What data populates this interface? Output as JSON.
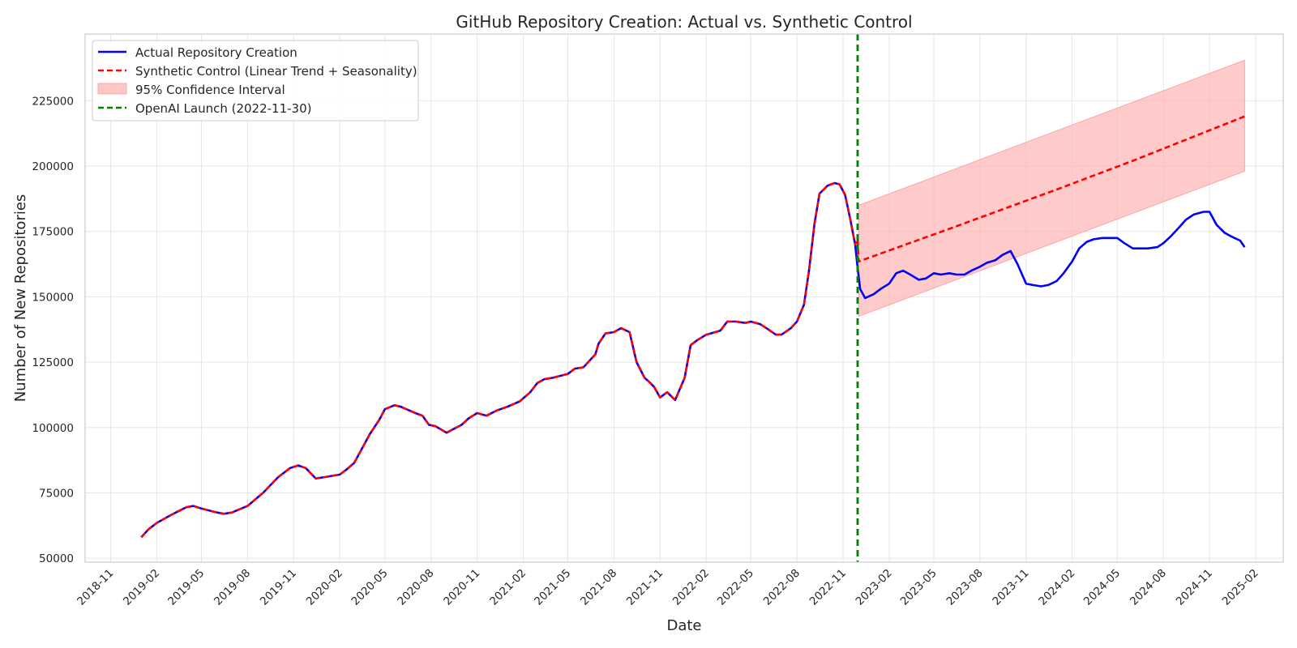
{
  "chart_data": {
    "type": "line",
    "title": "GitHub Repository Creation: Actual vs. Synthetic Control",
    "xlabel": "Date",
    "ylabel": "Number of New Repositories",
    "xlim": [
      "2018-09-11",
      "2025-03-28"
    ],
    "ylim": [
      48500,
      250500
    ],
    "x_ticks": [
      "2018-11",
      "2019-02",
      "2019-05",
      "2019-08",
      "2019-11",
      "2020-02",
      "2020-05",
      "2020-08",
      "2020-11",
      "2021-02",
      "2021-05",
      "2021-08",
      "2021-11",
      "2022-02",
      "2022-05",
      "2022-08",
      "2022-11",
      "2023-02",
      "2023-05",
      "2023-08",
      "2023-11",
      "2024-02",
      "2024-05",
      "2024-08",
      "2024-11",
      "2025-02"
    ],
    "y_ticks": [
      50000,
      75000,
      100000,
      125000,
      150000,
      175000,
      200000,
      225000
    ],
    "grid": true,
    "legend_position": "top-left",
    "legend": {
      "actual": "Actual Repository Creation",
      "synthetic": "Synthetic Control (Linear Trend + Seasonality)",
      "ci": "95% Confidence Interval",
      "launch": "OpenAI Launch (2022-11-30)"
    },
    "event": {
      "date": "2022-11-30",
      "color": "#008000"
    },
    "colors": {
      "actual": "#0000ff",
      "synthetic": "#ff0000",
      "ci": "#ffb3b3",
      "grid": "#e6e6e6"
    },
    "series": [
      {
        "name": "Actual Repository Creation",
        "x": [
          "2019-01-01",
          "2019-01-15",
          "2019-02-01",
          "2019-03-01",
          "2019-04-01",
          "2019-04-15",
          "2019-05-01",
          "2019-06-01",
          "2019-06-15",
          "2019-07-01",
          "2019-08-01",
          "2019-09-01",
          "2019-10-01",
          "2019-10-25",
          "2019-11-10",
          "2019-11-25",
          "2019-12-15",
          "2020-01-01",
          "2020-02-01",
          "2020-02-15",
          "2020-03-01",
          "2020-04-01",
          "2020-04-20",
          "2020-05-01",
          "2020-05-20",
          "2020-06-01",
          "2020-07-01",
          "2020-07-15",
          "2020-07-28",
          "2020-08-10",
          "2020-09-01",
          "2020-10-01",
          "2020-10-15",
          "2020-11-01",
          "2020-11-20",
          "2020-12-10",
          "2021-01-01",
          "2021-01-25",
          "2021-02-15",
          "2021-03-01",
          "2021-03-15",
          "2021-04-01",
          "2021-05-01",
          "2021-05-15",
          "2021-06-01",
          "2021-06-25",
          "2021-07-01",
          "2021-07-15",
          "2021-08-01",
          "2021-08-15",
          "2021-09-01",
          "2021-09-15",
          "2021-10-01",
          "2021-10-10",
          "2021-10-20",
          "2021-11-01",
          "2021-11-15",
          "2021-12-01",
          "2021-12-20",
          "2022-01-01",
          "2022-01-15",
          "2022-02-01",
          "2022-03-01",
          "2022-03-15",
          "2022-04-01",
          "2022-04-20",
          "2022-05-01",
          "2022-05-20",
          "2022-06-01",
          "2022-06-20",
          "2022-07-01",
          "2022-07-20",
          "2022-08-01",
          "2022-08-15",
          "2022-08-25",
          "2022-09-05",
          "2022-09-15",
          "2022-10-01",
          "2022-10-15",
          "2022-10-25",
          "2022-11-05",
          "2022-11-15",
          "2022-11-25",
          "2022-11-30",
          "2022-12-05",
          "2022-12-15",
          "2023-01-01",
          "2023-01-15",
          "2023-02-01",
          "2023-02-15",
          "2023-03-01",
          "2023-03-15",
          "2023-04-01",
          "2023-04-15",
          "2023-05-01",
          "2023-05-15",
          "2023-06-01",
          "2023-06-15",
          "2023-07-01",
          "2023-07-15",
          "2023-08-01",
          "2023-08-15",
          "2023-09-01",
          "2023-09-15",
          "2023-10-01",
          "2023-10-15",
          "2023-11-01",
          "2023-11-15",
          "2023-12-01",
          "2023-12-15",
          "2024-01-01",
          "2024-01-15",
          "2024-02-01",
          "2024-02-15",
          "2024-03-01",
          "2024-03-15",
          "2024-04-01",
          "2024-05-01",
          "2024-05-15",
          "2024-06-01",
          "2024-07-01",
          "2024-07-20",
          "2024-08-01",
          "2024-08-15",
          "2024-09-01",
          "2024-09-15",
          "2024-10-01",
          "2024-10-20",
          "2024-11-01",
          "2024-11-15",
          "2024-12-01",
          "2024-12-15",
          "2025-01-01",
          "2025-01-10"
        ],
        "y": [
          58000,
          61000,
          63500,
          66500,
          69500,
          70000,
          69000,
          67500,
          67000,
          67500,
          70000,
          75000,
          81000,
          84500,
          85500,
          84500,
          80500,
          81000,
          82000,
          84000,
          86500,
          97500,
          103000,
          107000,
          108500,
          108000,
          105500,
          104500,
          101000,
          100500,
          98000,
          101000,
          103500,
          105500,
          104500,
          106500,
          108000,
          110000,
          113500,
          117000,
          118500,
          119000,
          120500,
          122500,
          123000,
          128000,
          132000,
          136000,
          136500,
          138000,
          136500,
          125000,
          119000,
          117500,
          115500,
          111500,
          113500,
          110500,
          119000,
          131500,
          133500,
          135500,
          137000,
          140500,
          140500,
          140000,
          140500,
          139500,
          138000,
          135500,
          135500,
          138000,
          140500,
          147000,
          160000,
          178000,
          189500,
          192500,
          193500,
          193000,
          189000,
          180000,
          170000,
          161000,
          153000,
          149500,
          151000,
          153000,
          155000,
          159000,
          160000,
          158500,
          156500,
          157000,
          159000,
          158500,
          159000,
          158500,
          158500,
          160000,
          161500,
          163000,
          164000,
          166000,
          167500,
          162500,
          155000,
          154500,
          154000,
          154500,
          156000,
          159000,
          163500,
          168500,
          171000,
          172000,
          172500,
          172500,
          170500,
          168500,
          168500,
          169000,
          170500,
          173000,
          176500,
          179500,
          181500,
          182500,
          182500,
          177500,
          174500,
          173000,
          171500,
          169000
        ]
      },
      {
        "name": "Synthetic Control (Linear Trend + Seasonality)",
        "x": [
          "2019-01-01",
          "2019-01-15",
          "2019-02-01",
          "2019-03-01",
          "2019-04-01",
          "2019-04-15",
          "2019-05-01",
          "2019-06-01",
          "2019-06-15",
          "2019-07-01",
          "2019-08-01",
          "2019-09-01",
          "2019-10-01",
          "2019-10-25",
          "2019-11-10",
          "2019-11-25",
          "2019-12-15",
          "2020-01-01",
          "2020-02-01",
          "2020-02-15",
          "2020-03-01",
          "2020-04-01",
          "2020-04-20",
          "2020-05-01",
          "2020-05-20",
          "2020-06-01",
          "2020-07-01",
          "2020-07-15",
          "2020-07-28",
          "2020-08-10",
          "2020-09-01",
          "2020-10-01",
          "2020-10-15",
          "2020-11-01",
          "2020-11-20",
          "2020-12-10",
          "2021-01-01",
          "2021-01-25",
          "2021-02-15",
          "2021-03-01",
          "2021-03-15",
          "2021-04-01",
          "2021-05-01",
          "2021-05-15",
          "2021-06-01",
          "2021-06-25",
          "2021-07-01",
          "2021-07-15",
          "2021-08-01",
          "2021-08-15",
          "2021-09-01",
          "2021-09-15",
          "2021-10-01",
          "2021-10-10",
          "2021-10-20",
          "2021-11-01",
          "2021-11-15",
          "2021-12-01",
          "2021-12-20",
          "2022-01-01",
          "2022-01-15",
          "2022-02-01",
          "2022-03-01",
          "2022-03-15",
          "2022-04-01",
          "2022-04-20",
          "2022-05-01",
          "2022-05-20",
          "2022-06-01",
          "2022-06-20",
          "2022-07-01",
          "2022-07-20",
          "2022-08-01",
          "2022-08-15",
          "2022-08-25",
          "2022-09-05",
          "2022-09-15",
          "2022-10-01",
          "2022-10-15",
          "2022-10-25",
          "2022-11-05",
          "2022-11-15",
          "2022-11-25",
          "2022-11-30",
          "2022-12-02",
          "2023-06-01",
          "2024-01-01",
          "2024-06-01",
          "2025-01-10"
        ],
        "y": [
          58000,
          61000,
          63500,
          66500,
          69500,
          70000,
          69000,
          67500,
          67000,
          67500,
          70000,
          75000,
          81000,
          84500,
          85500,
          84500,
          80500,
          81000,
          82000,
          84000,
          86500,
          97500,
          103000,
          107000,
          108500,
          108000,
          105500,
          104500,
          101000,
          100500,
          98000,
          101000,
          103500,
          105500,
          104500,
          106500,
          108000,
          110000,
          113500,
          117000,
          118500,
          119000,
          120500,
          122500,
          123000,
          128000,
          132000,
          136000,
          136500,
          138000,
          136500,
          125000,
          119000,
          117500,
          115500,
          111500,
          113500,
          110500,
          119000,
          131500,
          133500,
          135500,
          137000,
          140500,
          140500,
          140000,
          140500,
          139500,
          138000,
          135500,
          135500,
          138000,
          140500,
          147000,
          160000,
          178000,
          189500,
          192500,
          193500,
          193000,
          189000,
          180000,
          170000,
          172000,
          163500,
          176000,
          191000,
          202000,
          219000
        ]
      }
    ],
    "confidence_interval": {
      "name": "95% Confidence Interval",
      "x": [
        "2022-12-02",
        "2025-01-10"
      ],
      "lower": [
        142500,
        198000
      ],
      "upper": [
        185000,
        240500
      ]
    }
  }
}
